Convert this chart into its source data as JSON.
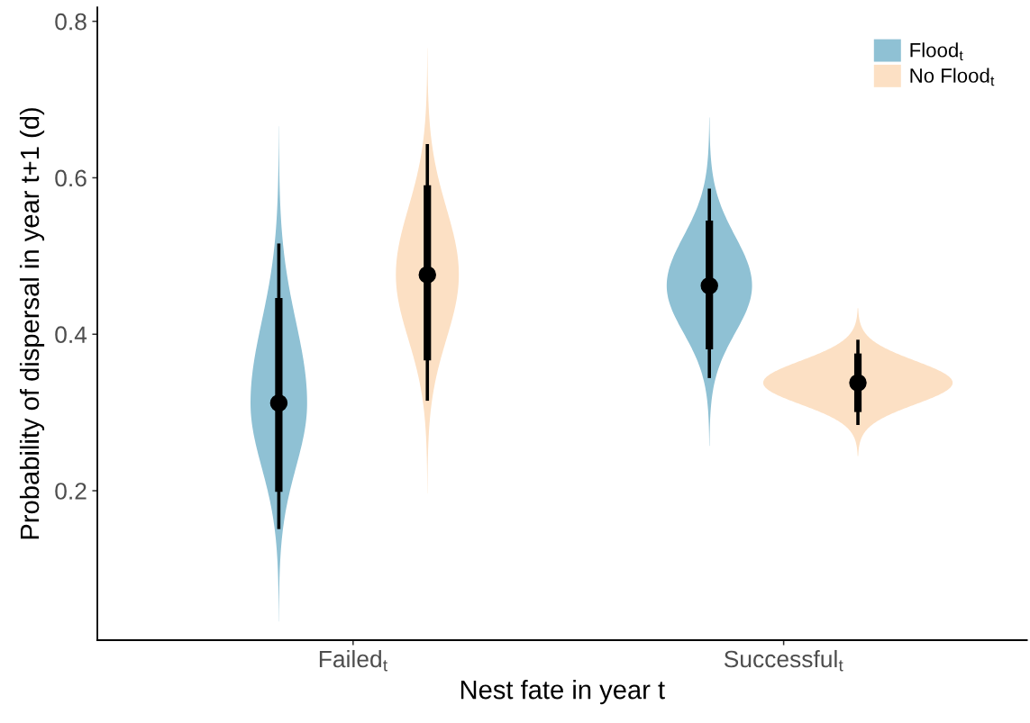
{
  "chart_data": {
    "type": "box",
    "categories": [
      "Failed$_{t}$",
      "Successful$_{t}$"
    ],
    "xlabel": "Nest fate in year t",
    "ylabel": "Probability of dispersal in year t+1 (d)",
    "ylim": [
      0.009,
      0.818
    ],
    "yticks": [
      0.2,
      0.4,
      0.6,
      0.8
    ],
    "grid": false,
    "legend": "top right",
    "marker": "circle",
    "series": [
      {
        "name": "Flood$_{t}$",
        "color": "#8fc1d4",
        "boxes": [
          {
            "low": 0.151,
            "q1": 0.201,
            "median": 0.312,
            "q3": 0.444,
            "high": 0.516
          },
          {
            "low": 0.344,
            "q1": 0.383,
            "median": 0.462,
            "q3": 0.543,
            "high": 0.586
          }
        ]
      },
      {
        "name": "No Flood$_{t}$",
        "color": "#fce0c4",
        "boxes": [
          {
            "low": 0.315,
            "q1": 0.369,
            "median": 0.476,
            "q3": 0.588,
            "high": 0.643
          },
          {
            "low": 0.284,
            "q1": 0.303,
            "median": 0.338,
            "q3": 0.373,
            "high": 0.393
          }
        ]
      }
    ]
  }
}
